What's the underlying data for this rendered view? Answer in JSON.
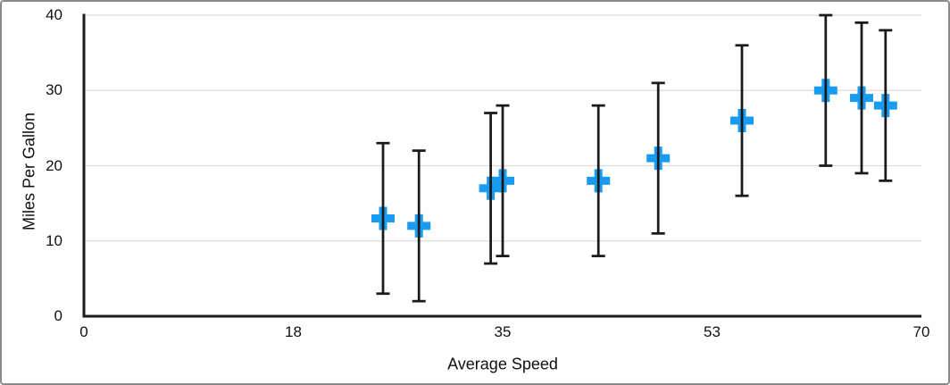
{
  "figure": {
    "background": "#FFFFFF",
    "border_color": "#8A8A8A"
  },
  "chart_data": {
    "type": "scatter",
    "title": "",
    "xlabel": "Average Speed",
    "ylabel": "Miles Per Gallon",
    "xlim": [
      0,
      70
    ],
    "ylim": [
      0,
      40
    ],
    "grid": "horizontal-only",
    "legend": "none",
    "x_ticks": {
      "values": [
        0,
        17.5,
        35,
        52.5,
        70
      ],
      "labels": [
        "0",
        "18",
        "35",
        "53",
        "70"
      ]
    },
    "y_ticks": {
      "values": [
        0,
        10,
        20,
        30,
        40
      ],
      "labels": [
        "0",
        "10",
        "20",
        "30",
        "40"
      ]
    },
    "colors": {
      "marker": "#1A9BF2",
      "error_bar": "#1A1A1A",
      "axis": "#1A1A1A",
      "gridline": "#DCDCDC",
      "text": "#111111"
    },
    "series": [
      {
        "name": "Miles Per Gallon",
        "marker_shape": "plus",
        "error_bars": "symmetric-y",
        "points": [
          {
            "x": 25,
            "y": 13,
            "err": 10
          },
          {
            "x": 28,
            "y": 12,
            "err": 10
          },
          {
            "x": 34,
            "y": 17,
            "err": 10
          },
          {
            "x": 35,
            "y": 18,
            "err": 10
          },
          {
            "x": 43,
            "y": 18,
            "err": 10
          },
          {
            "x": 48,
            "y": 21,
            "err": 10
          },
          {
            "x": 55,
            "y": 26,
            "err": 10
          },
          {
            "x": 62,
            "y": 30,
            "err": 10
          },
          {
            "x": 65,
            "y": 29,
            "err": 10
          },
          {
            "x": 67,
            "y": 28,
            "err": 10
          }
        ]
      }
    ]
  }
}
